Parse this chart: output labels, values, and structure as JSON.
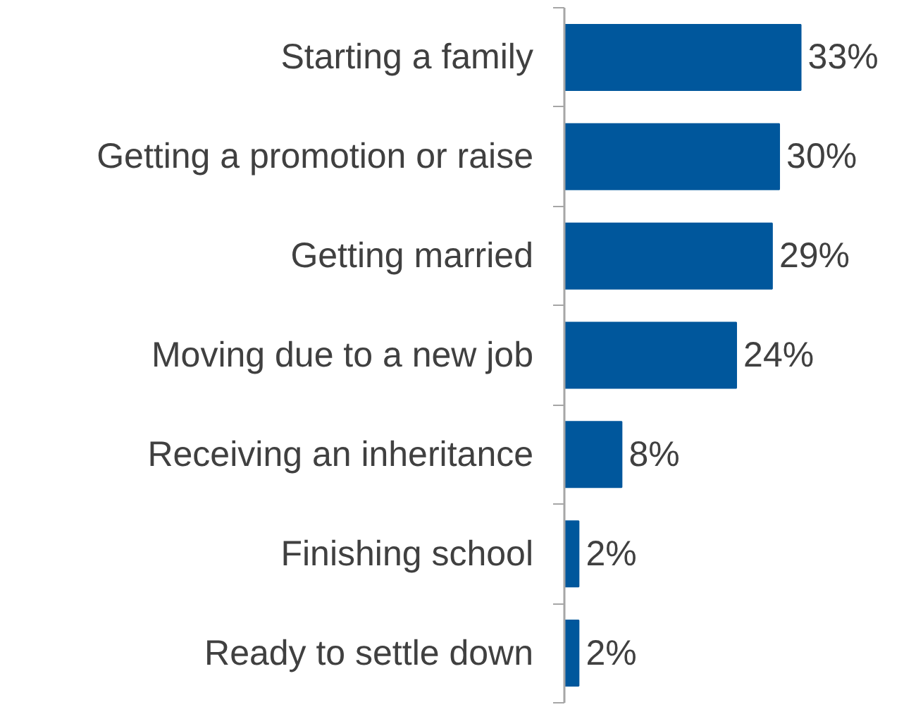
{
  "chart_data": {
    "type": "bar",
    "orientation": "horizontal",
    "categories": [
      "Starting a family",
      "Getting a promotion or raise",
      "Getting married",
      "Moving due to a new job",
      "Receiving an inheritance",
      "Finishing school",
      "Ready to settle down"
    ],
    "values": [
      33,
      30,
      29,
      24,
      8,
      2,
      2
    ],
    "value_labels": [
      "33%",
      "30%",
      "29%",
      "24%",
      "8%",
      "2%",
      "2%"
    ],
    "color": "#00579c",
    "grid": false,
    "tick_labels": "y"
  }
}
